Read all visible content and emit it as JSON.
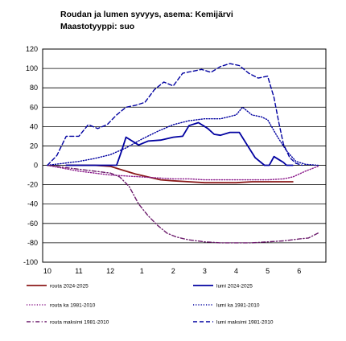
{
  "chart_data": {
    "type": "line",
    "title": "Roudan ja lumen syvyys, asema: Kemijärvi",
    "subtitle": "Maastotyyppi: suo",
    "ylim": [
      -100,
      120
    ],
    "ytick_step": 20,
    "x_range": [
      -0.15,
      8.85
    ],
    "x_ticks": [
      0,
      1,
      2,
      3,
      4,
      5,
      6,
      7,
      8
    ],
    "x_tick_labels": [
      "10",
      "11",
      "12",
      "1",
      "2",
      "3",
      "4",
      "5",
      "6"
    ],
    "grid": "horizontal",
    "legend_position": "bottom",
    "series": [
      {
        "name": "routa 2024-2025",
        "color": "#8b1a1a",
        "style": "solid",
        "x": [
          0.6,
          1.5,
          2.0,
          2.4,
          2.8,
          3.2,
          3.6,
          4.0,
          4.5,
          5.0,
          5.5,
          6.0,
          6.5,
          7.0,
          7.5,
          7.8
        ],
        "y": [
          0,
          0,
          -1,
          -5,
          -9,
          -12,
          -15,
          -16,
          -17,
          -18,
          -18,
          -18,
          -17,
          -17,
          -17,
          -17
        ]
      },
      {
        "name": "lumi 2024-2025",
        "color": "#0000a0",
        "style": "solid",
        "x": [
          0.6,
          1.5,
          2.2,
          2.35,
          2.5,
          2.9,
          3.2,
          3.6,
          4.0,
          4.3,
          4.5,
          4.8,
          5.1,
          5.3,
          5.5,
          5.8,
          6.1,
          6.35,
          6.6,
          6.9,
          7.05,
          7.2,
          7.35,
          7.5,
          7.6,
          7.8
        ],
        "y": [
          0,
          0,
          0,
          14,
          29,
          21,
          25,
          26,
          29,
          30,
          41,
          44,
          38,
          32,
          31,
          34,
          34,
          21,
          8,
          0,
          0,
          9,
          6,
          3,
          0,
          0
        ]
      },
      {
        "name": "routa ka 1981-2010",
        "color": "#8b1a8b",
        "style": "dotted",
        "x": [
          0.0,
          0.5,
          1.0,
          1.5,
          2.0,
          2.5,
          3.0,
          3.5,
          4.0,
          4.5,
          5.0,
          5.5,
          6.0,
          6.5,
          7.0,
          7.5,
          7.8,
          8.2,
          8.6
        ],
        "y": [
          0,
          -3,
          -6,
          -8,
          -10,
          -11,
          -12,
          -13,
          -14,
          -14,
          -15,
          -15,
          -15,
          -15,
          -15,
          -14,
          -12,
          -6,
          -1
        ]
      },
      {
        "name": "lumi ka 1981-2010",
        "color": "#0000a0",
        "style": "dotted",
        "x": [
          0.0,
          0.5,
          1.0,
          1.5,
          2.0,
          2.5,
          3.0,
          3.5,
          4.0,
          4.5,
          5.0,
          5.5,
          6.0,
          6.2,
          6.5,
          6.8,
          7.0,
          7.3,
          7.6,
          7.9,
          8.2,
          8.6
        ],
        "y": [
          0,
          2,
          4,
          7,
          11,
          18,
          27,
          35,
          42,
          46,
          48,
          48,
          52,
          60,
          52,
          50,
          47,
          30,
          15,
          4,
          1,
          0
        ]
      },
      {
        "name": "routa maksimi 1981-2010",
        "color": "#6b1a6b",
        "style": "dashdot",
        "x": [
          0.0,
          0.5,
          1.0,
          1.5,
          2.0,
          2.3,
          2.6,
          2.9,
          3.2,
          3.5,
          3.8,
          4.1,
          4.5,
          5.0,
          5.5,
          6.0,
          6.5,
          7.0,
          7.5,
          8.0,
          8.3,
          8.6
        ],
        "y": [
          0,
          -2,
          -4,
          -6,
          -8,
          -12,
          -22,
          -40,
          -52,
          -62,
          -70,
          -74,
          -77,
          -79,
          -80,
          -80,
          -80,
          -79,
          -78,
          -76,
          -75,
          -70
        ]
      },
      {
        "name": "lumi maksimi 1981-2010",
        "color": "#0000a0",
        "style": "dashed",
        "x": [
          0.0,
          0.3,
          0.6,
          1.0,
          1.3,
          1.6,
          1.9,
          2.2,
          2.5,
          2.8,
          3.1,
          3.4,
          3.7,
          4.0,
          4.3,
          4.6,
          4.9,
          5.2,
          5.5,
          5.8,
          6.1,
          6.4,
          6.7,
          7.0,
          7.2,
          7.35,
          7.5,
          7.7,
          7.9,
          8.1
        ],
        "y": [
          0,
          10,
          30,
          30,
          42,
          38,
          42,
          52,
          60,
          62,
          65,
          78,
          86,
          82,
          95,
          97,
          99,
          96,
          102,
          105,
          103,
          95,
          90,
          92,
          70,
          45,
          22,
          8,
          2,
          0
        ]
      }
    ]
  }
}
